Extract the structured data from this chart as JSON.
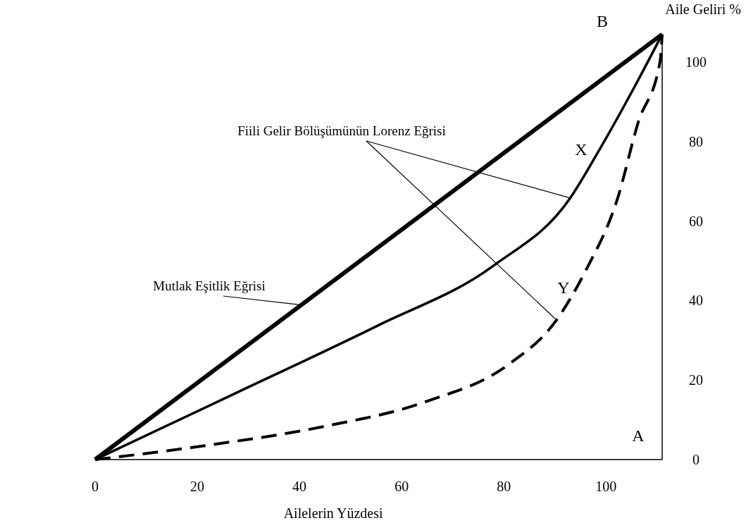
{
  "chart_data": {
    "type": "line",
    "xlabel": "Ailelerin Yüzdesi",
    "ylabel": "Aile Geliri %",
    "xlim": [
      0,
      111
    ],
    "ylim": [
      0,
      107
    ],
    "xticks": [
      0,
      20,
      40,
      60,
      80,
      100
    ],
    "yticks": [
      0,
      20,
      40,
      60,
      80,
      100
    ],
    "grid": false,
    "series": [
      {
        "color": "#000000",
        "line_style": "solid",
        "x": [
          0,
          111
        ],
        "values": [
          0,
          107
        ]
      },
      {
        "color": "#000000",
        "line_style": "solid",
        "x": [
          0,
          28,
          55,
          78,
          93,
          98.2,
          105.6,
          111
        ],
        "values": [
          0,
          17,
          33.5,
          48.8,
          65.8,
          76.8,
          93.8,
          107
        ]
      },
      {
        "color": "#000000",
        "line_style": "dashed",
        "x": [
          0,
          21.5,
          44.7,
          64.6,
          81,
          90.2,
          96.1,
          102.2,
          106.3,
          110.6,
          111
        ],
        "values": [
          0,
          3.5,
          8.3,
          14.5,
          24,
          34.9,
          47.7,
          65.4,
          84.8,
          100.2,
          107
        ]
      }
    ],
    "annotations": [
      "B",
      "A",
      "X",
      "Y",
      {
        "text": "Fiili Gelir Bölüşümünün Lorenz Eğrisi",
        "x": 93,
        "y": 65.8
      },
      {
        "text": "Mutlak Eşitlik Eğrisi",
        "x": 40.4,
        "y": 38.9
      }
    ]
  }
}
